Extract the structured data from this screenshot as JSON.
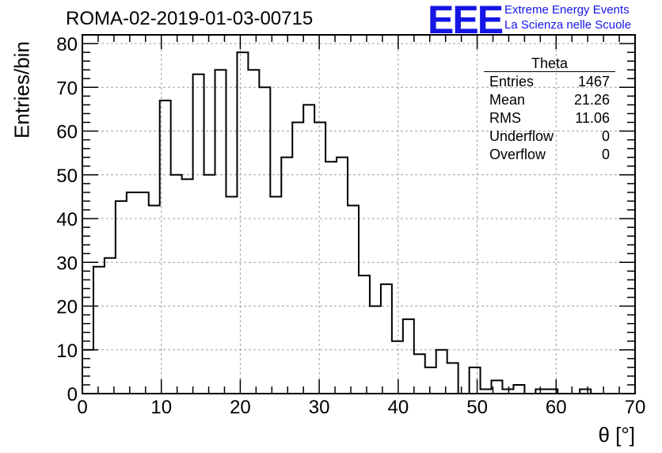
{
  "header": {
    "title": "ROMA-02-2019-01-03-00715",
    "logo": "EEE",
    "logo_line1": "Extreme Energy Events",
    "logo_line2": "La Scienza nelle Scuole",
    "logo_color": "#1515e6"
  },
  "stats": {
    "title": "Theta",
    "rows": [
      {
        "label": "Entries",
        "value": "1467"
      },
      {
        "label": "Mean",
        "value": "21.26"
      },
      {
        "label": "RMS",
        "value": "11.06"
      },
      {
        "label": "Underflow",
        "value": "0"
      },
      {
        "label": "Overflow",
        "value": "0"
      }
    ]
  },
  "chart_data": {
    "type": "histogram",
    "xlabel": "θ [°]",
    "ylabel": "Entries/bin",
    "xlim": [
      0,
      70
    ],
    "ylim": [
      0,
      82
    ],
    "grid": true,
    "bin_width": 1.4,
    "xticks": [
      0,
      10,
      20,
      30,
      40,
      50,
      60,
      70
    ],
    "yticks": [
      0,
      10,
      20,
      30,
      40,
      50,
      60,
      70,
      80
    ],
    "bin_edges": [
      0,
      1.4,
      2.8,
      4.2,
      5.6,
      7.0,
      8.4,
      9.8,
      11.2,
      12.6,
      14.0,
      15.4,
      16.8,
      18.2,
      19.6,
      21.0,
      22.4,
      23.8,
      25.2,
      26.6,
      28.0,
      29.4,
      30.8,
      32.2,
      33.6,
      35.0,
      36.4,
      37.8,
      39.2,
      40.6,
      42.0,
      43.4,
      44.8,
      46.2,
      47.6,
      49.0,
      50.4,
      51.8,
      53.2,
      54.6,
      56.0,
      57.4,
      58.8,
      60.2,
      61.6,
      63.0,
      64.4,
      65.8,
      67.2,
      68.6,
      70.0
    ],
    "values": [
      10,
      29,
      31,
      44,
      46,
      46,
      43,
      67,
      50,
      49,
      73,
      50,
      74,
      45,
      78,
      74,
      70,
      45,
      54,
      62,
      66,
      62,
      53,
      54,
      43,
      27,
      20,
      25,
      12,
      17,
      9,
      6,
      10,
      7,
      0,
      6,
      1,
      3,
      1,
      2,
      0,
      1,
      1,
      0,
      0,
      1,
      0,
      0,
      0,
      0
    ],
    "line_color": "#000000",
    "grid_color": "#a0a0a0"
  }
}
